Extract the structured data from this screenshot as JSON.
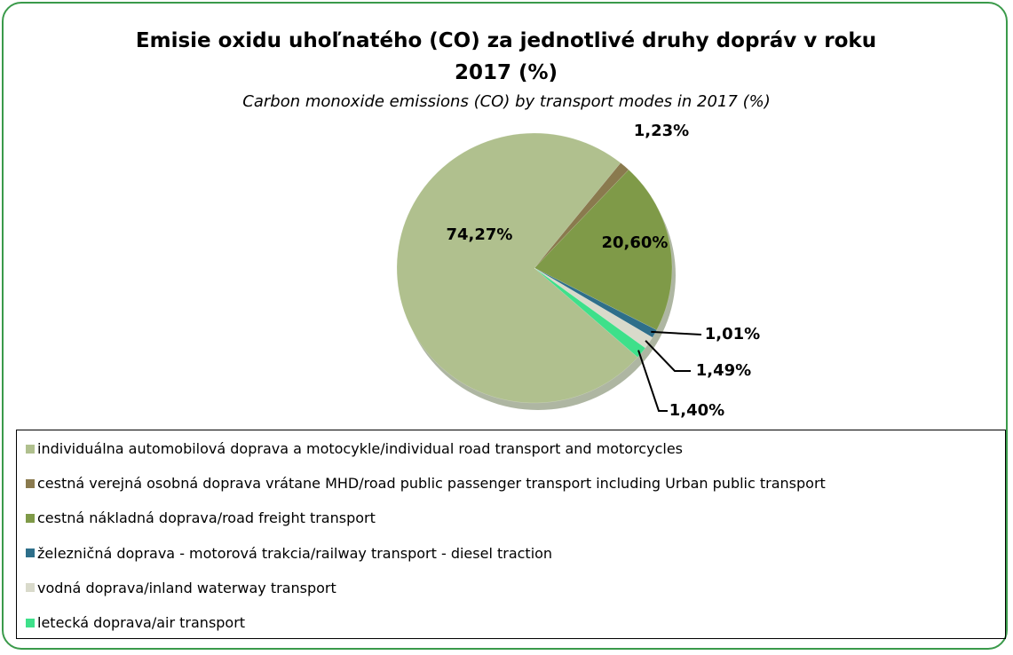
{
  "chart_data": {
    "type": "pie",
    "title": "Emisie oxidu uhoľnatého (CO) za jednotlivé druhy dopráv v roku 2017 (%)",
    "subtitle": "Carbon monoxide emissions (CO) by transport modes in 2017 (%)",
    "categories": [
      "individuálna automobilová doprava a motocykle/individual road transport and motorcycles",
      "cestná verejná osobná doprava vrátane MHD/road public passenger transport including Urban public transport",
      "cestná nákladná doprava/road freight transport",
      "železničná doprava - motorová trakcia/railway transport - diesel traction",
      "vodná doprava/inland waterway transport",
      "letecká doprava/air transport"
    ],
    "values": [
      74.27,
      1.23,
      20.6,
      1.01,
      1.49,
      1.4
    ],
    "value_labels": [
      "74,27%",
      "1,23%",
      "20,60%",
      "1,01%",
      "1,49%",
      "1,40%"
    ],
    "colors": [
      "#b0c08e",
      "#8a7a4e",
      "#7f9a48",
      "#2e6f8a",
      "#d9dacb",
      "#3ee08a"
    ],
    "legend": "bottom"
  }
}
